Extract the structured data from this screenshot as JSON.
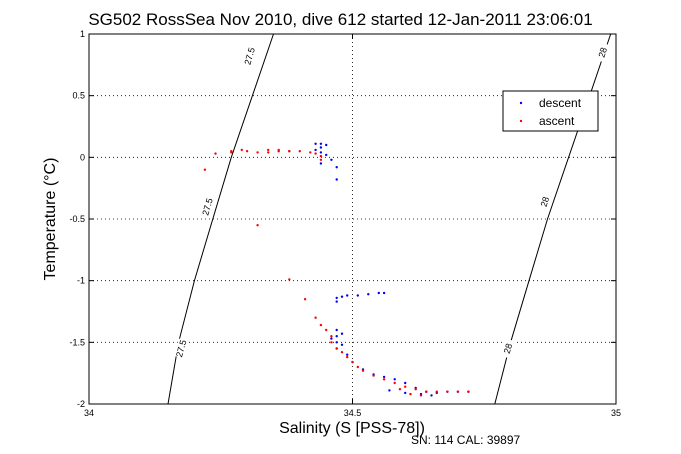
{
  "chart_data": {
    "type": "scatter",
    "title": "SG502 RossSea Nov 2010, dive 612 started 12-Jan-2011 23:06:01",
    "xlabel": "Salinity (S [PSS-78])",
    "ylabel": "Temperature (°C)",
    "xlim": [
      34,
      35
    ],
    "ylim": [
      -2,
      1
    ],
    "x_ticks": [
      "34",
      "34.5",
      "35"
    ],
    "y_ticks": [
      "-2",
      "-1.5",
      "-1",
      "-0.5",
      "0",
      "0.5",
      "1"
    ],
    "grid": true,
    "legend_position": "top-right",
    "series": [
      {
        "name": "descent",
        "color": "#0000ff",
        "points": [
          [
            34.43,
            0.11
          ],
          [
            34.44,
            0.11
          ],
          [
            34.45,
            0.1
          ],
          [
            34.44,
            0.08
          ],
          [
            34.43,
            0.06
          ],
          [
            34.44,
            0.04
          ],
          [
            34.45,
            0.02
          ],
          [
            34.46,
            -0.02
          ],
          [
            34.44,
            -0.05
          ],
          [
            34.47,
            -0.08
          ],
          [
            34.47,
            -0.18
          ],
          [
            34.56,
            -1.1
          ],
          [
            34.55,
            -1.1
          ],
          [
            34.53,
            -1.11
          ],
          [
            34.51,
            -1.12
          ],
          [
            34.49,
            -1.12
          ],
          [
            34.48,
            -1.13
          ],
          [
            34.47,
            -1.14
          ],
          [
            34.47,
            -1.17
          ],
          [
            34.47,
            -1.4
          ],
          [
            34.48,
            -1.43
          ],
          [
            34.47,
            -1.45
          ],
          [
            34.46,
            -1.47
          ],
          [
            34.47,
            -1.5
          ],
          [
            34.48,
            -1.52
          ],
          [
            34.47,
            -1.55
          ],
          [
            34.49,
            -1.6
          ],
          [
            34.5,
            -1.66
          ],
          [
            34.52,
            -1.72
          ],
          [
            34.54,
            -1.76
          ],
          [
            34.56,
            -1.78
          ],
          [
            34.58,
            -1.8
          ],
          [
            34.6,
            -1.83
          ],
          [
            34.62,
            -1.87
          ],
          [
            34.64,
            -1.9
          ],
          [
            34.66,
            -1.91
          ],
          [
            34.68,
            -1.9
          ],
          [
            34.7,
            -1.9
          ],
          [
            34.72,
            -1.9
          ],
          [
            34.65,
            -1.93
          ],
          [
            34.63,
            -1.92
          ],
          [
            34.6,
            -1.91
          ],
          [
            34.57,
            -1.89
          ]
        ]
      },
      {
        "name": "ascent",
        "color": "#ff0000",
        "points": [
          [
            34.3,
            0.05
          ],
          [
            34.34,
            0.04
          ],
          [
            34.38,
            0.05
          ],
          [
            34.4,
            0.05
          ],
          [
            34.42,
            0.04
          ],
          [
            34.43,
            0.03
          ],
          [
            34.44,
            0.01
          ],
          [
            34.44,
            -0.02
          ],
          [
            34.36,
            0.05
          ],
          [
            34.34,
            0.06
          ],
          [
            34.32,
            0.04
          ],
          [
            34.27,
            0.04
          ],
          [
            34.24,
            0.03
          ],
          [
            34.27,
            0.05
          ],
          [
            34.29,
            0.06
          ],
          [
            34.36,
            0.06
          ],
          [
            34.38,
            0.05
          ],
          [
            34.22,
            -0.1
          ],
          [
            34.32,
            -0.55
          ],
          [
            34.38,
            -0.99
          ],
          [
            34.41,
            -1.15
          ],
          [
            34.43,
            -1.3
          ],
          [
            34.44,
            -1.36
          ],
          [
            34.45,
            -1.4
          ],
          [
            34.46,
            -1.45
          ],
          [
            34.46,
            -1.5
          ],
          [
            34.47,
            -1.55
          ],
          [
            34.48,
            -1.58
          ],
          [
            34.49,
            -1.62
          ],
          [
            34.5,
            -1.66
          ],
          [
            34.51,
            -1.7
          ],
          [
            34.52,
            -1.73
          ],
          [
            34.54,
            -1.77
          ],
          [
            34.56,
            -1.8
          ],
          [
            34.58,
            -1.83
          ],
          [
            34.6,
            -1.86
          ],
          [
            34.62,
            -1.88
          ],
          [
            34.64,
            -1.9
          ],
          [
            34.66,
            -1.9
          ],
          [
            34.68,
            -1.9
          ],
          [
            34.7,
            -1.9
          ],
          [
            34.72,
            -1.9
          ],
          [
            34.61,
            -1.92
          ],
          [
            34.63,
            -1.93
          ],
          [
            34.59,
            -1.88
          ]
        ]
      }
    ],
    "density_contours": [
      {
        "label": "27.5",
        "color": "#000000",
        "points": [
          [
            34.15,
            -2
          ],
          [
            34.17,
            -1.5
          ],
          [
            34.2,
            -1.0
          ],
          [
            34.235,
            -0.5
          ],
          [
            34.27,
            0.0
          ],
          [
            34.31,
            0.5
          ],
          [
            34.35,
            1.0
          ]
        ],
        "label_positions": [
          [
            34.175,
            -1.55
          ],
          [
            34.225,
            -0.4
          ],
          [
            34.305,
            0.82
          ]
        ]
      },
      {
        "label": "28",
        "color": "#000000",
        "points": [
          [
            34.77,
            -2
          ],
          [
            34.8,
            -1.5
          ],
          [
            34.835,
            -1.0
          ],
          [
            34.87,
            -0.5
          ],
          [
            34.91,
            0.0
          ],
          [
            34.95,
            0.5
          ],
          [
            34.99,
            1.0
          ]
        ],
        "label_positions": [
          [
            34.795,
            -1.55
          ],
          [
            34.865,
            -0.36
          ],
          [
            34.975,
            0.85
          ]
        ]
      }
    ],
    "footer": "SN: 114  CAL: 39897"
  }
}
